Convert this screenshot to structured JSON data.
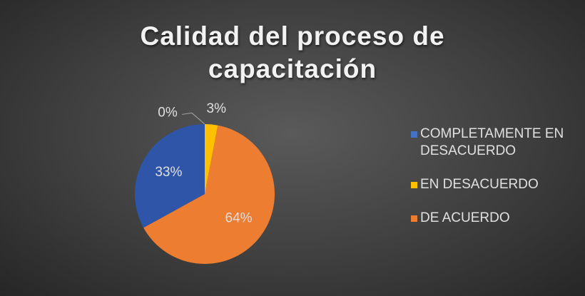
{
  "chart_data": {
    "type": "pie",
    "title": "Calidad del proceso de capacitación",
    "categories": [
      "COMPLETAMENTE EN DESACUERDO",
      "EN DESACUERDO",
      "DE ACUERDO",
      null
    ],
    "values": [
      0,
      3,
      64,
      33
    ],
    "value_labels": [
      "0%",
      "3%",
      "64%",
      "33%"
    ],
    "colors": [
      "#4472c4",
      "#ffc000",
      "#ed7d31",
      "#2f55a9"
    ],
    "legend": "right"
  }
}
